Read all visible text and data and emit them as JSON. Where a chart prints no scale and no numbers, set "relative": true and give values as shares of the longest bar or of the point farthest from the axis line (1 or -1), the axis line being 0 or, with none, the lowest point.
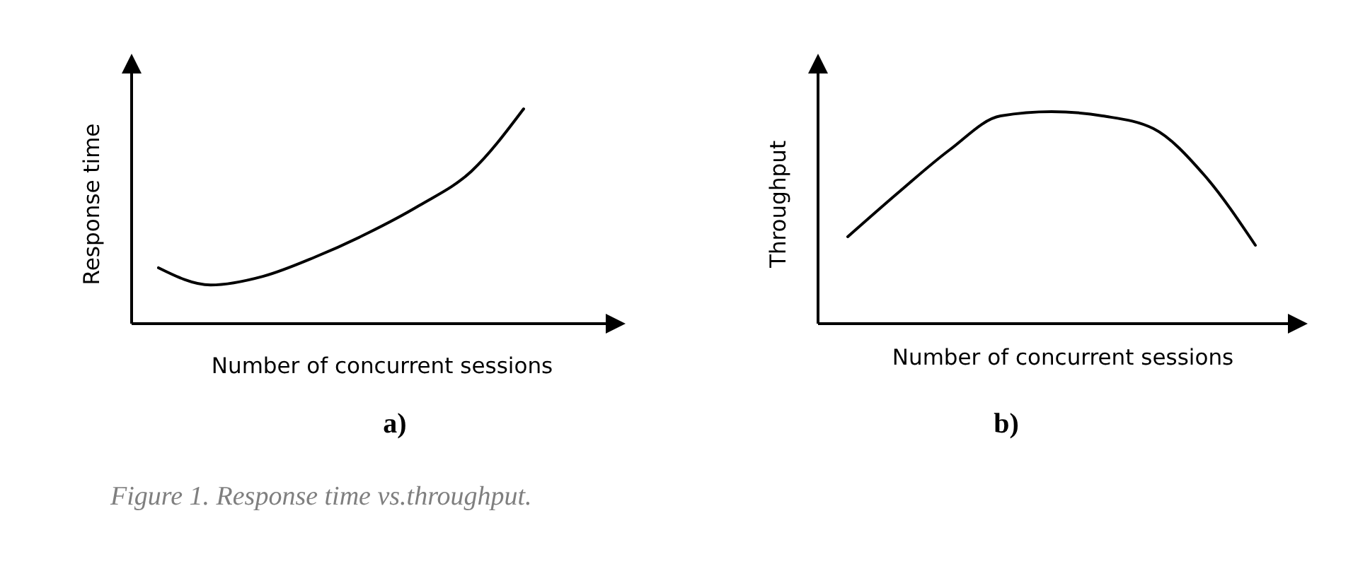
{
  "chart_data": [
    {
      "type": "line",
      "title": "a)",
      "xlabel": "Number of concurrent sessions",
      "ylabel": "Response time",
      "relative": true,
      "color": "#000000",
      "categories": [
        null,
        null,
        null,
        null,
        null,
        null,
        null,
        null
      ],
      "values": [
        0.26,
        0.18,
        0.22,
        0.31,
        0.42,
        0.55,
        0.71,
        1
      ],
      "annotations": [
        "Figure 1. Response time vs.throughput."
      ]
    },
    {
      "type": "line",
      "title": "b)",
      "xlabel": "Number of concurrent sessions",
      "ylabel": "Throughput",
      "relative": true,
      "color": "#000000",
      "categories": [
        null,
        null,
        null,
        null,
        null,
        null,
        null,
        null,
        null
      ],
      "values": [
        0.41,
        0.62,
        0.82,
        0.98,
        1,
        0.98,
        0.92,
        0.7,
        0.37
      ]
    }
  ]
}
